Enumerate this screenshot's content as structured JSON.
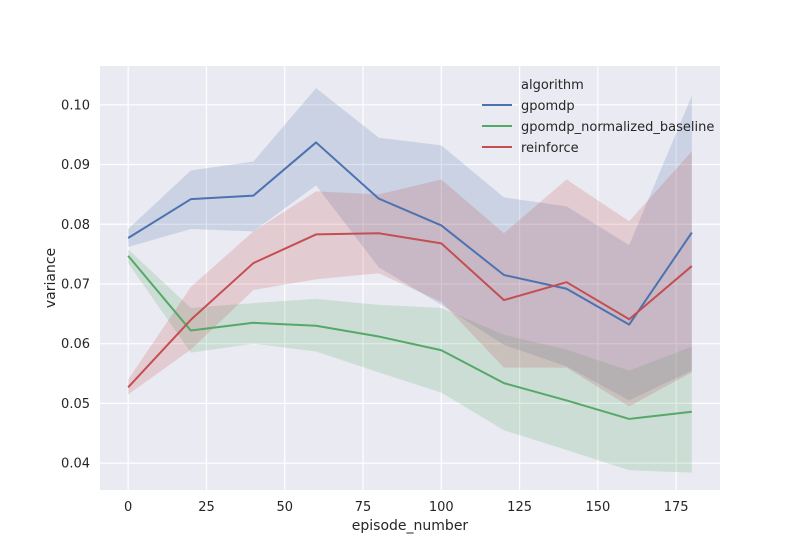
{
  "chart_data": {
    "type": "line",
    "xlabel": "episode_number",
    "ylabel": "variance",
    "xlim": [
      -9,
      189
    ],
    "ylim": [
      0.0355,
      0.1065
    ],
    "x_ticks": [
      0,
      25,
      50,
      75,
      100,
      125,
      150,
      175
    ],
    "y_ticks": [
      0.04,
      0.05,
      0.06,
      0.07,
      0.08,
      0.09,
      0.1
    ],
    "y_tick_labels": [
      "0.04",
      "0.05",
      "0.06",
      "0.07",
      "0.08",
      "0.09",
      "0.10"
    ],
    "x": [
      0,
      20,
      40,
      60,
      80,
      100,
      120,
      140,
      160,
      180
    ],
    "grid": true,
    "legend_position": "top-right",
    "legend_title": "algorithm",
    "series": [
      {
        "name": "gpomdp",
        "color": "#4c72b0",
        "values": [
          0.0777,
          0.0842,
          0.0848,
          0.0937,
          0.0843,
          0.0798,
          0.0715,
          0.0692,
          0.0632,
          0.0786
        ],
        "ci_low": [
          0.0762,
          0.0792,
          0.0788,
          0.0865,
          0.0728,
          0.0665,
          0.0598,
          0.0562,
          0.0505,
          0.0555
        ],
        "ci_high": [
          0.0792,
          0.089,
          0.0905,
          0.1028,
          0.0945,
          0.0932,
          0.0845,
          0.083,
          0.0765,
          0.1015
        ]
      },
      {
        "name": "gpomdp_normalized_baseline",
        "color": "#55a868",
        "values": [
          0.0747,
          0.0622,
          0.0635,
          0.063,
          0.0612,
          0.0589,
          0.0534,
          0.0505,
          0.0474,
          0.0486
        ],
        "ci_low": [
          0.0735,
          0.0585,
          0.06,
          0.0587,
          0.0552,
          0.0518,
          0.0455,
          0.0422,
          0.0388,
          0.0384
        ],
        "ci_high": [
          0.0758,
          0.066,
          0.0668,
          0.0675,
          0.0665,
          0.066,
          0.0615,
          0.059,
          0.0555,
          0.0595
        ]
      },
      {
        "name": "reinforce",
        "color": "#c44e52",
        "values": [
          0.0527,
          0.064,
          0.0735,
          0.0783,
          0.0785,
          0.0768,
          0.0673,
          0.0703,
          0.0641,
          0.073
        ],
        "ci_low": [
          0.0515,
          0.059,
          0.069,
          0.0708,
          0.0718,
          0.067,
          0.056,
          0.056,
          0.0495,
          0.0552
        ],
        "ci_high": [
          0.054,
          0.0695,
          0.0788,
          0.0855,
          0.085,
          0.0875,
          0.0785,
          0.0875,
          0.0805,
          0.0922
        ]
      }
    ]
  }
}
